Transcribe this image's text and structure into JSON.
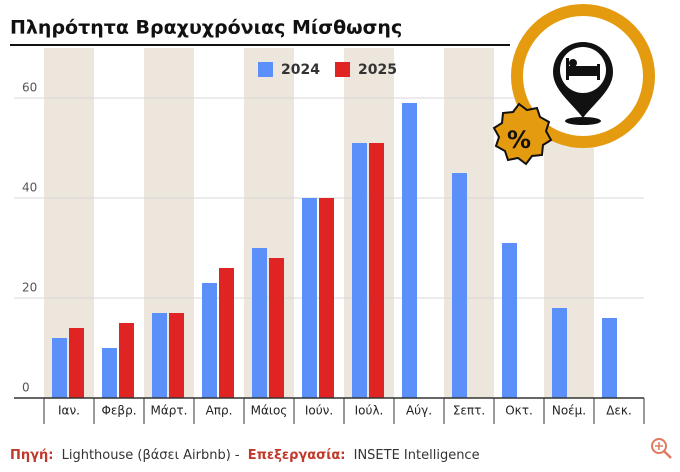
{
  "chart_data": {
    "type": "bar",
    "title": "Πληρότητα Βραχυχρόνιας Μίσθωσης",
    "categories": [
      "Ιαν.",
      "Φεβρ.",
      "Μάρτ.",
      "Απρ.",
      "Μάιος",
      "Ιούν.",
      "Ιούλ.",
      "Αύγ.",
      "Σεπτ.",
      "Οκτ.",
      "Νοέμ.",
      "Δεκ."
    ],
    "series": [
      {
        "name": "2024",
        "color": "#5b8ff9",
        "values": [
          12,
          10,
          17,
          23,
          30,
          40,
          51,
          59,
          45,
          31,
          18,
          16
        ]
      },
      {
        "name": "2025",
        "color": "#e02424",
        "values": [
          14,
          15,
          17,
          26,
          28,
          40,
          51,
          null,
          null,
          null,
          null,
          null
        ]
      }
    ],
    "ylim": [
      0,
      70
    ],
    "yticks": [
      0,
      20,
      40,
      60
    ],
    "grid": true,
    "band_color": "#ede6dc",
    "source_label": "Πηγή:",
    "source_text": "Lighthouse (βάσει Airbnb) -",
    "processing_label": "Επεξεργασία:",
    "processing_text": "INSETE Intelligence"
  }
}
